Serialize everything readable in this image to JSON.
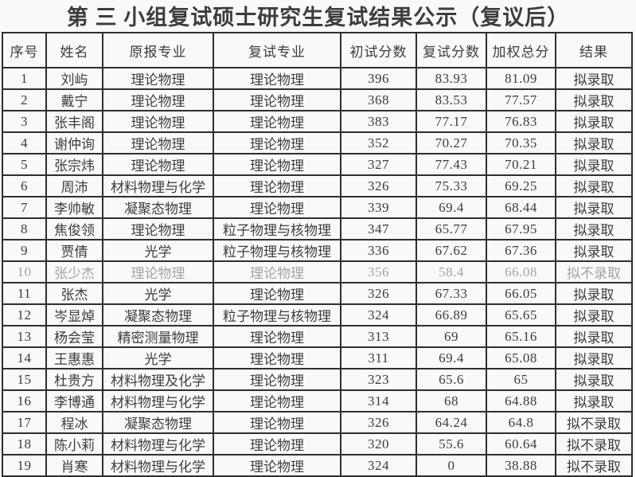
{
  "title": "第 三 小组复试硕士研究生复试结果公示（复议后）",
  "colors": {
    "text": "#3d3d3d",
    "muted_text": "#a3a3a3",
    "border": "#2f2f2f",
    "background": "#faf9f7"
  },
  "table": {
    "headers": [
      "序号",
      "姓名",
      "原报专业",
      "复试专业",
      "初试分数",
      "复试分数",
      "加权总分",
      "结果"
    ],
    "rows": [
      {
        "no": "1",
        "name": "刘屿",
        "original_major": "理论物理",
        "retest_major": "理论物理",
        "initial_score": "396",
        "retest_score": "83.93",
        "weighted_score": "81.09",
        "result": "拟录取",
        "muted": false
      },
      {
        "no": "2",
        "name": "戴宁",
        "original_major": "理论物理",
        "retest_major": "理论物理",
        "initial_score": "368",
        "retest_score": "83.53",
        "weighted_score": "77.57",
        "result": "拟录取",
        "muted": false
      },
      {
        "no": "3",
        "name": "张丰阁",
        "original_major": "理论物理",
        "retest_major": "理论物理",
        "initial_score": "383",
        "retest_score": "77.17",
        "weighted_score": "76.83",
        "result": "拟录取",
        "muted": false
      },
      {
        "no": "4",
        "name": "谢仲询",
        "original_major": "理论物理",
        "retest_major": "理论物理",
        "initial_score": "352",
        "retest_score": "70.27",
        "weighted_score": "70.35",
        "result": "拟录取",
        "muted": false
      },
      {
        "no": "5",
        "name": "张宗炜",
        "original_major": "理论物理",
        "retest_major": "理论物理",
        "initial_score": "327",
        "retest_score": "77.43",
        "weighted_score": "70.21",
        "result": "拟录取",
        "muted": false
      },
      {
        "no": "6",
        "name": "周沛",
        "original_major": "材料物理与化学",
        "retest_major": "理论物理",
        "initial_score": "326",
        "retest_score": "75.33",
        "weighted_score": "69.25",
        "result": "拟录取",
        "muted": false
      },
      {
        "no": "7",
        "name": "李帅敏",
        "original_major": "凝聚态物理",
        "retest_major": "理论物理",
        "initial_score": "339",
        "retest_score": "69.4",
        "weighted_score": "68.44",
        "result": "拟录取",
        "muted": false
      },
      {
        "no": "8",
        "name": "焦俊领",
        "original_major": "理论物理",
        "retest_major": "粒子物理与核物理",
        "initial_score": "347",
        "retest_score": "65.77",
        "weighted_score": "67.95",
        "result": "拟录取",
        "muted": false
      },
      {
        "no": "9",
        "name": "贾倩",
        "original_major": "光学",
        "retest_major": "粒子物理与核物理",
        "initial_score": "336",
        "retest_score": "67.62",
        "weighted_score": "67.36",
        "result": "拟录取",
        "muted": false
      },
      {
        "no": "10",
        "name": "张少杰",
        "original_major": "理论物理",
        "retest_major": "理论物理",
        "initial_score": "356",
        "retest_score": "58.4",
        "weighted_score": "66.08",
        "result": "拟不录取",
        "muted": true
      },
      {
        "no": "11",
        "name": "张杰",
        "original_major": "光学",
        "retest_major": "理论物理",
        "initial_score": "326",
        "retest_score": "67.33",
        "weighted_score": "66.05",
        "result": "拟录取",
        "muted": false
      },
      {
        "no": "12",
        "name": "岑显焯",
        "original_major": "凝聚态物理",
        "retest_major": "粒子物理与核物理",
        "initial_score": "324",
        "retest_score": "66.89",
        "weighted_score": "65.65",
        "result": "拟录取",
        "muted": false
      },
      {
        "no": "13",
        "name": "杨会莹",
        "original_major": "精密测量物理",
        "retest_major": "理论物理",
        "initial_score": "313",
        "retest_score": "69",
        "weighted_score": "65.16",
        "result": "拟录取",
        "muted": false
      },
      {
        "no": "14",
        "name": "王惠惠",
        "original_major": "光学",
        "retest_major": "理论物理",
        "initial_score": "311",
        "retest_score": "69.4",
        "weighted_score": "65.08",
        "result": "拟录取",
        "muted": false
      },
      {
        "no": "15",
        "name": "杜贵方",
        "original_major": "材料物理及化学",
        "retest_major": "理论物理",
        "initial_score": "323",
        "retest_score": "65.6",
        "weighted_score": "65",
        "result": "拟录取",
        "muted": false
      },
      {
        "no": "16",
        "name": "李博通",
        "original_major": "材料物理与化学",
        "retest_major": "理论物理",
        "initial_score": "314",
        "retest_score": "68",
        "weighted_score": "64.88",
        "result": "拟录取",
        "muted": false
      },
      {
        "no": "17",
        "name": "程冰",
        "original_major": "凝聚态物理",
        "retest_major": "理论物理",
        "initial_score": "326",
        "retest_score": "64.24",
        "weighted_score": "64.8",
        "result": "拟不录取",
        "muted": false
      },
      {
        "no": "18",
        "name": "陈小莉",
        "original_major": "材料物理与化学",
        "retest_major": "理论物理",
        "initial_score": "320",
        "retest_score": "55.6",
        "weighted_score": "60.64",
        "result": "拟不录取",
        "muted": false
      },
      {
        "no": "19",
        "name": "肖寒",
        "original_major": "材料物理与化学",
        "retest_major": "理论物理",
        "initial_score": "324",
        "retest_score": "0",
        "weighted_score": "38.88",
        "result": "拟不录取",
        "muted": false
      }
    ]
  }
}
